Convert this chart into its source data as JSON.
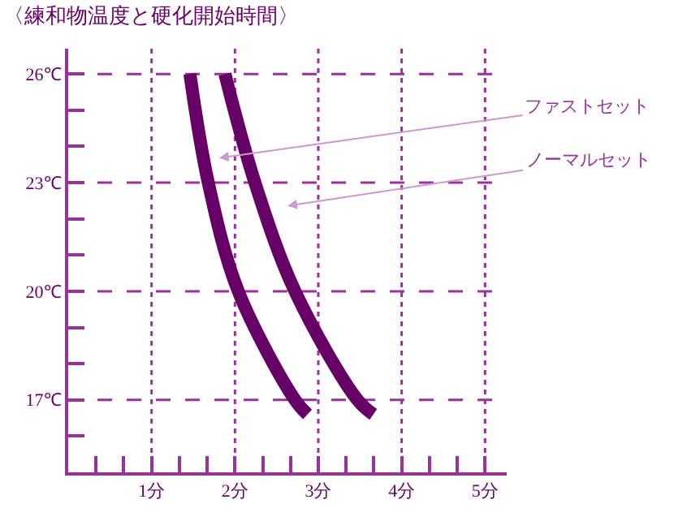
{
  "chart_data": {
    "type": "line",
    "title": "〈練和物温度と硬化開始時間〉",
    "series": [
      {
        "color": "#660066",
        "x": [
          1.46,
          1.68,
          2.04,
          2.72,
          2.87
        ],
        "values": [
          26,
          23,
          20,
          17,
          16.6
        ]
      },
      {
        "color": "#660066",
        "x": [
          1.88,
          2.24,
          2.72,
          3.47,
          3.66
        ],
        "values": [
          26,
          23,
          20,
          17,
          16.6
        ]
      }
    ],
    "annotations": [
      "ファストセット",
      "ノーマルセット"
    ],
    "xlim": [
      0,
      5.26
    ],
    "ylim": [
      15,
      26.7
    ],
    "xticks": [
      {
        "value": 0.333,
        "label": null
      },
      {
        "value": 0.667,
        "label": null
      },
      {
        "value": 1,
        "label": "1分"
      },
      {
        "value": 1.333,
        "label": null
      },
      {
        "value": 1.667,
        "label": null
      },
      {
        "value": 2,
        "label": "2分"
      },
      {
        "value": 2.333,
        "label": null
      },
      {
        "value": 2.667,
        "label": null
      },
      {
        "value": 3,
        "label": "3分"
      },
      {
        "value": 3.333,
        "label": null
      },
      {
        "value": 3.667,
        "label": null
      },
      {
        "value": 4,
        "label": "4分"
      },
      {
        "value": 4.333,
        "label": null
      },
      {
        "value": 4.667,
        "label": null
      },
      {
        "value": 5,
        "label": "5分"
      }
    ],
    "yticks": [
      {
        "value": 16,
        "label": null
      },
      {
        "value": 17,
        "label": "17℃"
      },
      {
        "value": 18,
        "label": null
      },
      {
        "value": 19,
        "label": null
      },
      {
        "value": 20,
        "label": "20℃"
      },
      {
        "value": 21,
        "label": null
      },
      {
        "value": 22,
        "label": null
      },
      {
        "value": 23,
        "label": "23℃"
      },
      {
        "value": 24,
        "label": null
      },
      {
        "value": 25,
        "label": null
      },
      {
        "value": 26,
        "label": "26℃"
      }
    ],
    "grid": true,
    "marker": "none",
    "line_style": "solid"
  }
}
